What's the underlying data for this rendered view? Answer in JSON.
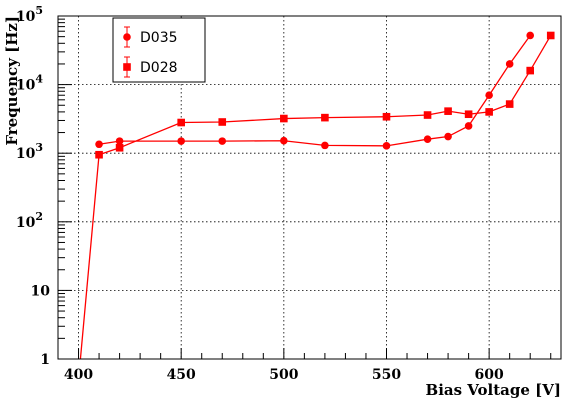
{
  "chart_data": {
    "type": "line",
    "title": "",
    "xlabel": "Bias Voltage [V]",
    "ylabel": "Frequency [Hz]",
    "xlim": [
      390,
      635
    ],
    "ylim": [
      1,
      100000
    ],
    "yscale": "log",
    "grid": true,
    "legend_position": "top-left",
    "x_ticks": [
      {
        "value": 400,
        "label": "400"
      },
      {
        "value": 450,
        "label": "450"
      },
      {
        "value": 500,
        "label": "500"
      },
      {
        "value": 550,
        "label": "550"
      },
      {
        "value": 600,
        "label": "600"
      }
    ],
    "y_ticks": [
      {
        "value": 1,
        "label": "1"
      },
      {
        "value": 10,
        "label": "10"
      },
      {
        "value": 100,
        "label": "10",
        "exp": "2"
      },
      {
        "value": 1000,
        "label": "10",
        "exp": "3"
      },
      {
        "value": 10000,
        "label": "10",
        "exp": "4"
      },
      {
        "value": 100000,
        "label": "10",
        "exp": "5"
      }
    ],
    "series": [
      {
        "name": "D035",
        "marker": "circle",
        "color": "#ff0000",
        "points": [
          {
            "x": 410,
            "y": 1350
          },
          {
            "x": 420,
            "y": 1500
          },
          {
            "x": 450,
            "y": 1500
          },
          {
            "x": 470,
            "y": 1500
          },
          {
            "x": 500,
            "y": 1520
          },
          {
            "x": 520,
            "y": 1300
          },
          {
            "x": 550,
            "y": 1280
          },
          {
            "x": 570,
            "y": 1600
          },
          {
            "x": 580,
            "y": 1750
          },
          {
            "x": 590,
            "y": 2500
          },
          {
            "x": 600,
            "y": 7000
          },
          {
            "x": 610,
            "y": 20000
          },
          {
            "x": 620,
            "y": 52000
          }
        ]
      },
      {
        "name": "D028",
        "marker": "square",
        "color": "#ff0000",
        "points": [
          {
            "x": 400,
            "y": 0.5
          },
          {
            "x": 410,
            "y": 950
          },
          {
            "x": 420,
            "y": 1200
          },
          {
            "x": 450,
            "y": 2800
          },
          {
            "x": 470,
            "y": 2850
          },
          {
            "x": 500,
            "y": 3200
          },
          {
            "x": 520,
            "y": 3300
          },
          {
            "x": 550,
            "y": 3400
          },
          {
            "x": 570,
            "y": 3600
          },
          {
            "x": 580,
            "y": 4100
          },
          {
            "x": 590,
            "y": 3700
          },
          {
            "x": 600,
            "y": 4000
          },
          {
            "x": 610,
            "y": 5200
          },
          {
            "x": 620,
            "y": 16000
          },
          {
            "x": 630,
            "y": 52000
          }
        ]
      }
    ]
  }
}
